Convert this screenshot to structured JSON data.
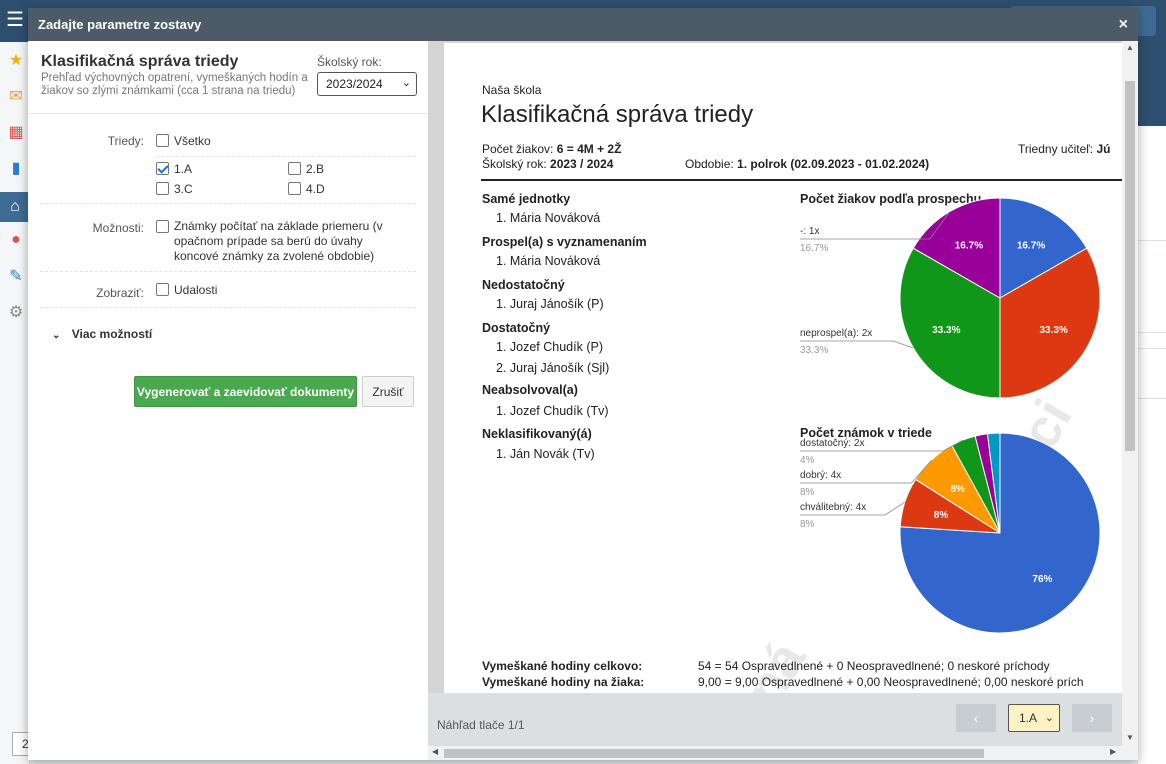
{
  "modal": {
    "title": "Zadajte parametre zostavy",
    "close_icon": "×"
  },
  "form": {
    "report_title": "Klasifikačná správa triedy",
    "report_desc": "Prehľad výchovných opatrení, vymeškaných hodín a žiakov so zlými známkami (cca 1 strana na triedu)",
    "year_label": "Školský rok:",
    "year_value": "2023/2024",
    "classes_label": "Triedy:",
    "all_label": "Všetko",
    "classes": [
      {
        "label": "1.A",
        "checked": true
      },
      {
        "label": "2.B",
        "checked": false
      },
      {
        "label": "3.C",
        "checked": false
      },
      {
        "label": "4.D",
        "checked": false
      }
    ],
    "options_label": "Možnosti:",
    "options_text": "Známky počítať na základe priemeru (v opačnom prípade sa berú do úvahy koncové známky za zvolené obdobie)",
    "display_label": "Zobraziť:",
    "events_label": "Udalosti",
    "more_label": "Viac možností",
    "generate_label": "Vygenerovať a zaevidovať dokumenty",
    "cancel_label": "Zrušiť"
  },
  "preview": {
    "school": "Naša škola",
    "title": "Klasifikačná správa triedy",
    "count_label": "Počet žiakov:",
    "count_value": "6 = 4M + 2Ž",
    "teacher_label": "Triedny učiteľ:",
    "teacher_value": "Jú",
    "year_label": "Školský rok:",
    "year_value": "2023 / 2024",
    "period_label": "Obdobie:",
    "period_value": "1. polrok (02.09.2023 - 01.02.2024)",
    "categories": [
      {
        "name": "Samé jednotky",
        "items": [
          "1.  Mária Nováková"
        ]
      },
      {
        "name": "Prospel(a) s vyznamenaním",
        "items": [
          "1.  Mária Nováková"
        ]
      },
      {
        "name": "Nedostatočný",
        "items": [
          "1.  Juraj Jánošík  (P)"
        ]
      },
      {
        "name": "Dostatočný",
        "items": [
          "1.  Jozef Chudík  (P)",
          "2.  Juraj Jánošík  (Sjl)"
        ]
      },
      {
        "name": "Neabsolvoval(a)",
        "items": [
          "1.  Jozef Chudík  (Tv)"
        ]
      },
      {
        "name": "Neklasifikovaný(á)",
        "items": [
          "1.  Ján Novák  (Tv)"
        ]
      }
    ],
    "absence_total_label": "Vymeškané hodiny celkovo:",
    "absence_total_value": "54 = 54 Ospravedlnené + 0 Neospravedlnené; 0 neskoré príchody",
    "absence_student_label": "Vymeškané hodiny na žiaka:",
    "absence_student_value": "9,00 = 9,00 Ospravedlnené + 0,00 Neospravedlnené; 0,00 neskoré prích",
    "nav_text": "Náhľad tlače 1/1",
    "nav_prev": "‹",
    "nav_next": "›",
    "class_select": "1.A"
  },
  "chart_data": [
    {
      "type": "pie",
      "title": "Počet žiakov podľa prospechu",
      "slices": [
        {
          "label": "",
          "value": 16.7,
          "color": "#3366cc"
        },
        {
          "label": "",
          "value": 33.3,
          "color": "#dc3912"
        },
        {
          "label": "neprospel(a): 2x",
          "value": 33.3,
          "color": "#109618"
        },
        {
          "label": "-: 1x",
          "value": 16.7,
          "color": "#990099"
        }
      ]
    },
    {
      "type": "pie",
      "title": "Počet známok v triede",
      "slices": [
        {
          "label": "",
          "value": 76,
          "color": "#3366cc"
        },
        {
          "label": "chválitebný: 4x",
          "value": 8,
          "color": "#dc3912"
        },
        {
          "label": "dobrý: 4x",
          "value": 8,
          "color": "#ff9900"
        },
        {
          "label": "dostatočný: 2x",
          "value": 4,
          "color": "#109618"
        },
        {
          "label": "",
          "value": 2,
          "color": "#990099"
        },
        {
          "label": "",
          "value": 2,
          "color": "#0099c6"
        }
      ]
    }
  ],
  "icons": {
    "hamburger": "menu-icon",
    "sidebar": [
      "star-icon",
      "mail-icon",
      "calendar-icon",
      "book-icon",
      "library-icon",
      "chat-icon",
      "pen-icon",
      "gear-icon"
    ]
  }
}
